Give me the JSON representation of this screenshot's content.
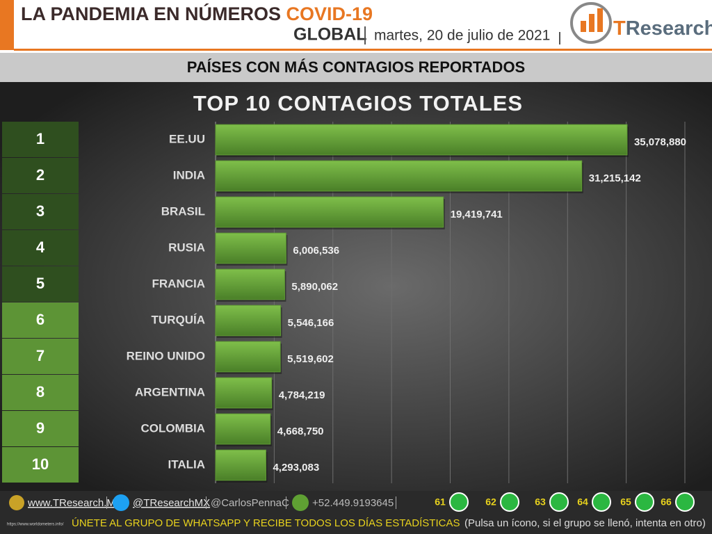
{
  "header": {
    "title": "LA PANDEMIA EN NÚMEROS",
    "title_highlight": "COVID-19",
    "scope": "GLOBAL",
    "date": "martes, 20 de julio de 2021",
    "logo_t": "T",
    "logo_rest": "Research"
  },
  "banner": "PAÍSES CON MÁS CONTAGIOS REPORTADOS",
  "chart_data": {
    "type": "barh",
    "title": "TOP 10 CONTAGIOS TOTALES",
    "ranks": [
      "1",
      "2",
      "3",
      "4",
      "5",
      "6",
      "7",
      "8",
      "9",
      "10"
    ],
    "categories": [
      "EE.UU",
      "INDIA",
      "BRASIL",
      "RUSIA",
      "FRANCIA",
      "TURQUÍA",
      "REINO UNIDO",
      "ARGENTINA",
      "COLOMBIA",
      "ITALIA"
    ],
    "values": [
      35078880,
      31215142,
      19419741,
      6006536,
      5890062,
      5546166,
      5519602,
      4784219,
      4668750,
      4293083
    ],
    "value_labels": [
      "35,078,880",
      "31,215,142",
      "19,419,741",
      "6,006,536",
      "5,890,062",
      "5,546,166",
      "5,519,602",
      "4,784,219",
      "4,668,750",
      "4,293,083"
    ],
    "color": "#5f9a34",
    "xlim": [
      0,
      40000000
    ],
    "xticks": [
      0,
      5000000,
      10000000,
      15000000,
      20000000,
      25000000,
      30000000,
      35000000,
      40000000
    ],
    "grid": true
  },
  "footer": {
    "web": "www.TResearch.Mx",
    "twitter": "@TResearchMX",
    "personal": "@CarlosPennaC",
    "phone": "+52.449.9193645",
    "groups": [
      "61",
      "62",
      "63",
      "64",
      "65",
      "66"
    ],
    "call": "ÚNETE AL GRUPO DE WHATSAPP Y RECIBE TODOS LOS DÍAS ESTADÍSTICAS",
    "hint": "(Pulsa un ícono, si el grupo se llenó, intenta en otro)",
    "source": "https://www.worldometers.info/"
  }
}
